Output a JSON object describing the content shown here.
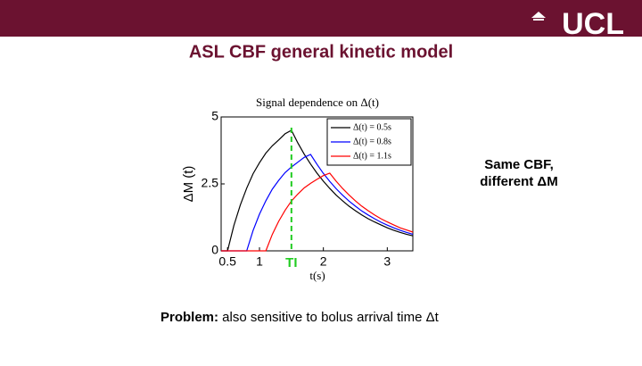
{
  "slide": {
    "logo": "UCL",
    "title": "ASL CBF general kinetic model",
    "side_note": [
      "Same CBF,",
      "different ΔM"
    ],
    "problem_label": "Problem:",
    "problem_text": " also sensitive to bolus arrival time Δt"
  },
  "chart_data": {
    "type": "line",
    "title": "Signal dependence on Δ(t)",
    "x_label": "t(s)",
    "y_label": "ΔM (t)",
    "x": [
      0.4,
      0.5,
      0.6,
      0.7,
      0.8,
      0.9,
      1.0,
      1.1,
      1.2,
      1.3,
      1.4,
      1.5,
      1.6,
      1.7,
      1.8,
      1.9,
      2.0,
      2.1,
      2.2,
      2.3,
      2.4,
      2.5,
      2.6,
      2.7,
      2.8,
      2.9,
      3.0,
      3.1,
      3.2,
      3.3,
      3.4
    ],
    "series": [
      {
        "name": "Δ(t) = 0.5s",
        "color": "#000000",
        "values": [
          0,
          0,
          0.95,
          1.71,
          2.34,
          2.88,
          3.29,
          3.65,
          3.92,
          4.14,
          4.37,
          4.5,
          4.03,
          3.61,
          3.24,
          2.9,
          2.6,
          2.33,
          2.08,
          1.87,
          1.67,
          1.5,
          1.34,
          1.2,
          1.08,
          0.97,
          0.86,
          0.77,
          0.69,
          0.62,
          0.56
        ]
      },
      {
        "name": "Δ(t) = 0.8s",
        "color": "#0000ff",
        "values": [
          0,
          0,
          0,
          0,
          0,
          0.76,
          1.37,
          1.87,
          2.3,
          2.63,
          2.92,
          3.13,
          3.31,
          3.49,
          3.6,
          3.23,
          2.89,
          2.59,
          2.32,
          2.08,
          1.86,
          1.67,
          1.49,
          1.34,
          1.2,
          1.07,
          0.96,
          0.86,
          0.77,
          0.69,
          0.62
        ]
      },
      {
        "name": "Δ(t) = 1.1s",
        "color": "#ff0000",
        "values": [
          0,
          0,
          0,
          0,
          0,
          0,
          0,
          0,
          0.61,
          1.1,
          1.51,
          1.86,
          2.12,
          2.35,
          2.52,
          2.67,
          2.81,
          2.9,
          2.6,
          2.33,
          2.09,
          1.87,
          1.67,
          1.5,
          1.34,
          1.2,
          1.08,
          0.97,
          0.86,
          0.78,
          0.7
        ]
      }
    ],
    "xlim": [
      0.4,
      3.4
    ],
    "ylim": [
      0,
      5
    ],
    "xticks": [
      0.5,
      1,
      2,
      3
    ],
    "yticks": [
      0,
      2.5,
      5
    ],
    "legend": "upper right",
    "annotation": {
      "label": "TI",
      "x": 1.5,
      "color": "#22cc22"
    }
  }
}
